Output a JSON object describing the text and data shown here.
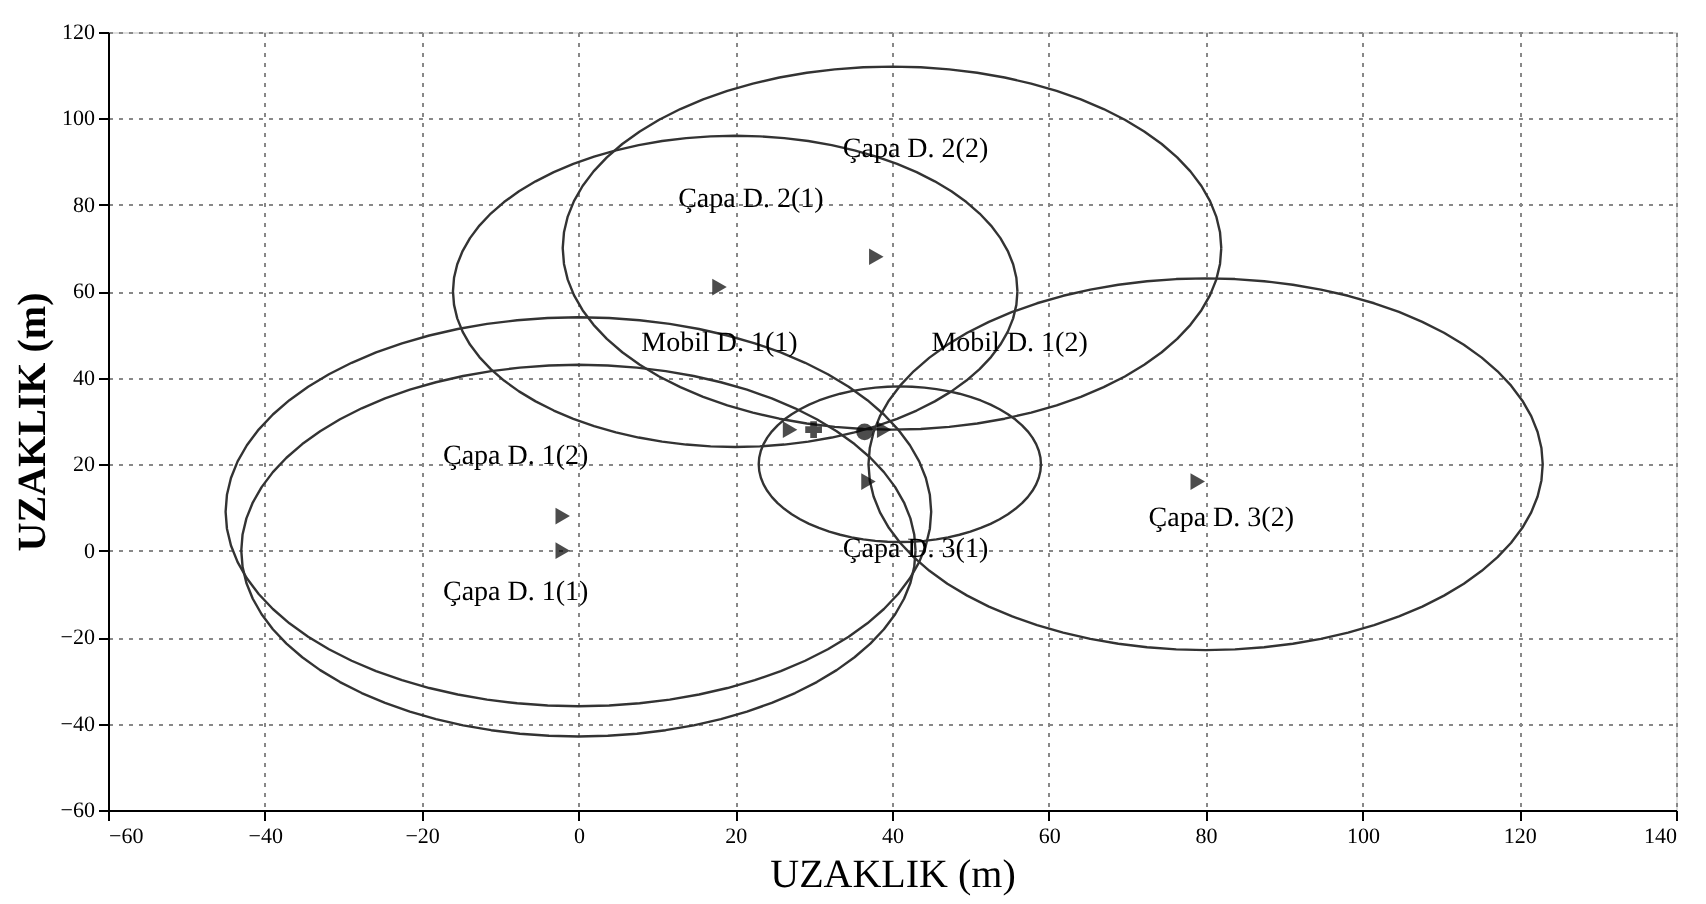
{
  "chart_data": {
    "type": "scatter",
    "xlabel": "UZAKLIK (m)",
    "ylabel": "UZAKLIK (m)",
    "xlim": [
      -60,
      140
    ],
    "xticks": [
      -60,
      -40,
      -20,
      0,
      20,
      40,
      60,
      80,
      100,
      120,
      140
    ],
    "ylim": [
      -60,
      120
    ],
    "yticks": [
      -60,
      -40,
      -20,
      0,
      20,
      40,
      60,
      80,
      100,
      120
    ],
    "grid": true,
    "series": [
      {
        "marker": "triangle",
        "color": "#000000",
        "x": [
          -2,
          -2,
          18,
          38,
          37,
          79,
          27,
          39
        ],
        "values": [
          0,
          8,
          61,
          68,
          16,
          16,
          28,
          28
        ]
      },
      {
        "marker": "cross",
        "color": "#000000",
        "x": [
          30
        ],
        "values": [
          28
        ]
      },
      {
        "marker": "circle",
        "color": "#000000",
        "x": [
          36.5
        ],
        "values": [
          27.5
        ]
      }
    ],
    "annotations": [
      "Çapa D. 2(2)",
      "Çapa D. 2(1)",
      "Mobil D. 1(1)",
      "Mobil D. 1(2)",
      "Çapa D. 1(2)",
      "Çapa D. 1(1)",
      "Çapa D. 3(1)",
      "Çapa D. 3(2)"
    ]
  }
}
